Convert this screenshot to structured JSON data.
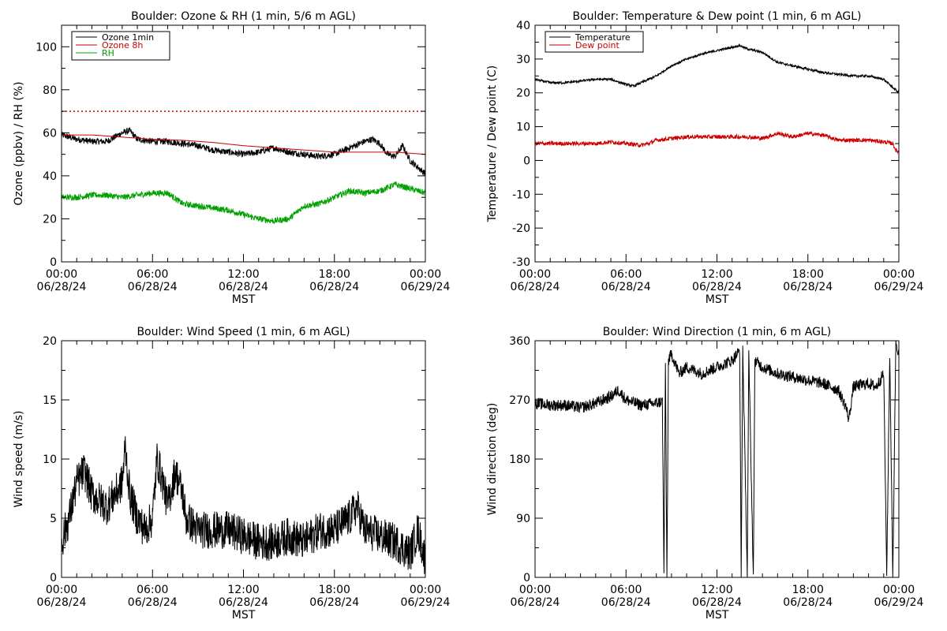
{
  "chart_data": [
    {
      "id": "ozone",
      "type": "line",
      "title": "Boulder: Ozone & RH (1 min, 5/6 m AGL)",
      "xlabel": "MST",
      "ylabel": "Ozone (ppbv) / RH (%)",
      "ylim": [
        0,
        110
      ],
      "yticks": [
        0,
        20,
        40,
        60,
        80,
        100
      ],
      "xlim": [
        0,
        24
      ],
      "xticks": [
        {
          "h": 0,
          "time": "00:00",
          "date": "06/28/24"
        },
        {
          "h": 6,
          "time": "06:00",
          "date": "06/28/24"
        },
        {
          "h": 12,
          "time": "12:00",
          "date": "06/28/24"
        },
        {
          "h": 18,
          "time": "18:00",
          "date": "06/28/24"
        },
        {
          "h": 24,
          "time": "00:00",
          "date": "06/29/24"
        }
      ],
      "legend_position": "top-left",
      "reference_line": {
        "y": 70,
        "color": "#cc0000",
        "style": "dotted"
      },
      "series": [
        {
          "name": "Ozone 1min",
          "color": "#000000",
          "noise": 1.5,
          "points": [
            [
              0,
              59
            ],
            [
              1,
              57
            ],
            [
              2,
              56
            ],
            [
              3,
              56
            ],
            [
              3.5,
              58
            ],
            [
              4,
              60
            ],
            [
              4.5,
              61
            ],
            [
              5,
              57
            ],
            [
              6,
              56
            ],
            [
              7,
              56
            ],
            [
              8,
              55
            ],
            [
              9,
              54
            ],
            [
              10,
              52
            ],
            [
              11,
              51
            ],
            [
              12,
              50
            ],
            [
              13,
              51
            ],
            [
              14,
              53
            ],
            [
              15,
              51
            ],
            [
              16,
              50
            ],
            [
              17,
              49
            ],
            [
              18,
              50
            ],
            [
              19,
              53
            ],
            [
              20,
              56
            ],
            [
              20.5,
              57
            ],
            [
              21,
              55
            ],
            [
              21.5,
              50
            ],
            [
              22,
              49
            ],
            [
              22.5,
              54
            ],
            [
              23,
              47
            ],
            [
              24,
              41
            ]
          ]
        },
        {
          "name": "Ozone 8h",
          "color": "#cc0000",
          "noise": 0,
          "points": [
            [
              0,
              59
            ],
            [
              2,
              59
            ],
            [
              4,
              58
            ],
            [
              6,
              57
            ],
            [
              8,
              56.5
            ],
            [
              10,
              55.5
            ],
            [
              12,
              54
            ],
            [
              14,
              53
            ],
            [
              16,
              52
            ],
            [
              18,
              51
            ],
            [
              20,
              51
            ],
            [
              22,
              51
            ],
            [
              24,
              50
            ]
          ]
        },
        {
          "name": "RH",
          "color": "#00a000",
          "noise": 1.4,
          "points": [
            [
              0,
              30
            ],
            [
              1,
              30
            ],
            [
              2,
              31
            ],
            [
              3,
              31
            ],
            [
              4,
              30
            ],
            [
              5,
              31
            ],
            [
              6,
              32
            ],
            [
              7,
              32
            ],
            [
              8,
              27
            ],
            [
              9,
              26
            ],
            [
              10,
              25
            ],
            [
              11,
              24
            ],
            [
              12,
              22
            ],
            [
              13,
              20
            ],
            [
              14,
              19
            ],
            [
              15,
              20
            ],
            [
              16,
              26
            ],
            [
              17,
              27
            ],
            [
              18,
              30
            ],
            [
              19,
              33
            ],
            [
              20,
              32
            ],
            [
              21,
              33
            ],
            [
              22,
              36
            ],
            [
              23,
              34
            ],
            [
              24,
              32
            ]
          ]
        }
      ]
    },
    {
      "id": "temp",
      "type": "line",
      "title": "Boulder: Temperature & Dew point (1 min, 6 m AGL)",
      "xlabel": "MST",
      "ylabel": "Temperature / Dew point (C)",
      "ylim": [
        -30,
        40
      ],
      "yticks": [
        -30,
        -20,
        -10,
        0,
        10,
        20,
        30,
        40
      ],
      "xlim": [
        0,
        24
      ],
      "xticks": [
        {
          "h": 0,
          "time": "00:00",
          "date": "06/28/24"
        },
        {
          "h": 6,
          "time": "06:00",
          "date": "06/28/24"
        },
        {
          "h": 12,
          "time": "12:00",
          "date": "06/28/24"
        },
        {
          "h": 18,
          "time": "18:00",
          "date": "06/28/24"
        },
        {
          "h": 24,
          "time": "00:00",
          "date": "06/29/24"
        }
      ],
      "legend_position": "top-left",
      "series": [
        {
          "name": "Temperature",
          "color": "#000000",
          "noise": 0.35,
          "points": [
            [
              0,
              24
            ],
            [
              1,
              23
            ],
            [
              2,
              23
            ],
            [
              3,
              23.5
            ],
            [
              4,
              24
            ],
            [
              5,
              24
            ],
            [
              6,
              22.5
            ],
            [
              6.5,
              22
            ],
            [
              7,
              23
            ],
            [
              8,
              25
            ],
            [
              9,
              28
            ],
            [
              10,
              30
            ],
            [
              11,
              31.5
            ],
            [
              12,
              32.5
            ],
            [
              13,
              33.5
            ],
            [
              13.5,
              34
            ],
            [
              14,
              33
            ],
            [
              15,
              32
            ],
            [
              16,
              29
            ],
            [
              17,
              28
            ],
            [
              18,
              27
            ],
            [
              19,
              26
            ],
            [
              20,
              25.5
            ],
            [
              21,
              25
            ],
            [
              22,
              25
            ],
            [
              23,
              24
            ],
            [
              24,
              20
            ]
          ]
        },
        {
          "name": "Dew point",
          "color": "#cc0000",
          "noise": 0.6,
          "points": [
            [
              0,
              5
            ],
            [
              2,
              5
            ],
            [
              4,
              5
            ],
            [
              5,
              5.5
            ],
            [
              6,
              5
            ],
            [
              7,
              4.5
            ],
            [
              7.5,
              5
            ],
            [
              8,
              6
            ],
            [
              9,
              6.5
            ],
            [
              10,
              7
            ],
            [
              12,
              7
            ],
            [
              13,
              7
            ],
            [
              14,
              7
            ],
            [
              15,
              6.5
            ],
            [
              16,
              8
            ],
            [
              17,
              7
            ],
            [
              18,
              8
            ],
            [
              19,
              7.5
            ],
            [
              20,
              6
            ],
            [
              21,
              6
            ],
            [
              22,
              6
            ],
            [
              23,
              5.5
            ],
            [
              23.6,
              5
            ],
            [
              23.8,
              3
            ],
            [
              24,
              2.5
            ]
          ]
        }
      ]
    },
    {
      "id": "wspd",
      "type": "line",
      "title": "Boulder: Wind Speed (1 min, 6 m AGL)",
      "xlabel": "MST",
      "ylabel": "Wind speed (m/s)",
      "ylim": [
        0,
        20
      ],
      "yticks": [
        0,
        5,
        10,
        15,
        20
      ],
      "xlim": [
        0,
        24
      ],
      "xticks": [
        {
          "h": 0,
          "time": "00:00",
          "date": "06/28/24"
        },
        {
          "h": 6,
          "time": "06:00",
          "date": "06/28/24"
        },
        {
          "h": 12,
          "time": "12:00",
          "date": "06/28/24"
        },
        {
          "h": 18,
          "time": "18:00",
          "date": "06/28/24"
        },
        {
          "h": 24,
          "time": "00:00",
          "date": "06/29/24"
        }
      ],
      "series": [
        {
          "name": "",
          "color": "#000000",
          "noise": 1.6,
          "points": [
            [
              0,
              3
            ],
            [
              0.5,
              5
            ],
            [
              1,
              8
            ],
            [
              1.5,
              9
            ],
            [
              2,
              7
            ],
            [
              3,
              6
            ],
            [
              4,
              8
            ],
            [
              4.2,
              11
            ],
            [
              4.5,
              7
            ],
            [
              5,
              5
            ],
            [
              5.5,
              4
            ],
            [
              6,
              5
            ],
            [
              6.3,
              10
            ],
            [
              6.7,
              8
            ],
            [
              7,
              6
            ],
            [
              7.5,
              9
            ],
            [
              8,
              7
            ],
            [
              8.2,
              5
            ],
            [
              9,
              4
            ],
            [
              10,
              4
            ],
            [
              11,
              4
            ],
            [
              12,
              3.5
            ],
            [
              13,
              3
            ],
            [
              14,
              3
            ],
            [
              15,
              3.5
            ],
            [
              16,
              3
            ],
            [
              17,
              4
            ],
            [
              18,
              4
            ],
            [
              19,
              5
            ],
            [
              19.5,
              6
            ],
            [
              20,
              4
            ],
            [
              21,
              3.5
            ],
            [
              22,
              3
            ],
            [
              23,
              2
            ],
            [
              23.5,
              4
            ],
            [
              24,
              1.5
            ]
          ]
        }
      ]
    },
    {
      "id": "wdir",
      "type": "line",
      "title": "Boulder: Wind Direction (1 min, 6 m AGL)",
      "xlabel": "MST",
      "ylabel": "Wind direction (deg)",
      "ylim": [
        0,
        360
      ],
      "yticks": [
        0,
        90,
        180,
        270,
        360
      ],
      "xlim": [
        0,
        24
      ],
      "xticks": [
        {
          "h": 0,
          "time": "00:00",
          "date": "06/28/24"
        },
        {
          "h": 6,
          "time": "06:00",
          "date": "06/28/24"
        },
        {
          "h": 12,
          "time": "12:00",
          "date": "06/28/24"
        },
        {
          "h": 18,
          "time": "18:00",
          "date": "06/28/24"
        },
        {
          "h": 24,
          "time": "00:00",
          "date": "06/29/24"
        }
      ],
      "series": [
        {
          "name": "",
          "color": "#000000",
          "noise": 9,
          "points": [
            [
              0,
              265
            ],
            [
              1,
              262
            ],
            [
              2,
              262
            ],
            [
              3,
              258
            ],
            [
              4,
              265
            ],
            [
              5,
              275
            ],
            [
              5.5,
              285
            ],
            [
              6,
              270
            ],
            [
              7,
              262
            ],
            [
              8,
              265
            ],
            [
              8.4,
              268
            ],
            [
              8.5,
              5
            ],
            [
              8.6,
              320
            ],
            [
              8.7,
              0
            ],
            [
              8.8,
              330
            ],
            [
              9,
              340
            ],
            [
              9.5,
              310
            ],
            [
              10,
              320
            ],
            [
              11,
              310
            ],
            [
              12,
              320
            ],
            [
              13,
              330
            ],
            [
              13.5,
              345
            ],
            [
              13.6,
              0
            ],
            [
              13.7,
              350
            ],
            [
              14,
              5
            ],
            [
              14.1,
              340
            ],
            [
              14.4,
              0
            ],
            [
              14.5,
              330
            ],
            [
              15,
              320
            ],
            [
              16,
              310
            ],
            [
              17,
              305
            ],
            [
              18,
              300
            ],
            [
              19,
              295
            ],
            [
              20,
              285
            ],
            [
              20.5,
              260
            ],
            [
              20.7,
              240
            ],
            [
              21,
              290
            ],
            [
              22,
              295
            ],
            [
              22.5,
              290
            ],
            [
              23,
              310
            ],
            [
              23.2,
              5
            ],
            [
              23.4,
              340
            ],
            [
              23.6,
              0
            ],
            [
              23.8,
              360
            ],
            [
              24,
              340
            ]
          ]
        }
      ]
    }
  ]
}
